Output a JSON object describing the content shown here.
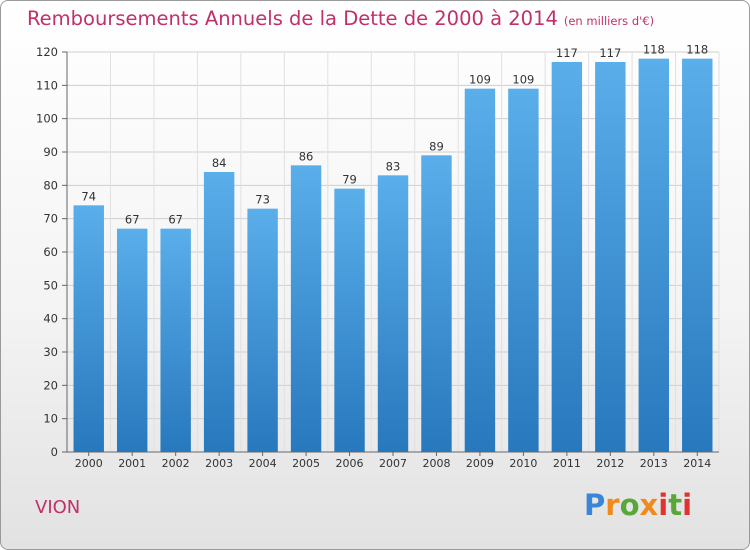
{
  "title": "Remboursements Annuels de la Dette de 2000 à 2014",
  "subtitle": "(en milliers d'€)",
  "place": "VION",
  "logo": {
    "text": "Proxiti"
  },
  "colors": {
    "bar_light": "#5aaeea",
    "bar_dark": "#2778bd",
    "title": "#c0306a",
    "grid": "#cccccc"
  },
  "chart_data": {
    "type": "bar",
    "title": "Remboursements Annuels de la Dette de 2000 à 2014",
    "subtitle": "(en milliers d'€)",
    "xlabel": "",
    "ylabel": "",
    "categories": [
      "2000",
      "2001",
      "2002",
      "2003",
      "2004",
      "2005",
      "2006",
      "2007",
      "2008",
      "2009",
      "2010",
      "2011",
      "2012",
      "2013",
      "2014"
    ],
    "values": [
      74,
      67,
      67,
      84,
      73,
      86,
      79,
      83,
      89,
      109,
      109,
      117,
      117,
      118,
      118
    ],
    "ylim": [
      0,
      120
    ],
    "yticks": [
      0,
      10,
      20,
      30,
      40,
      50,
      60,
      70,
      80,
      90,
      100,
      110,
      120
    ],
    "grid": true,
    "data_labels": true
  }
}
